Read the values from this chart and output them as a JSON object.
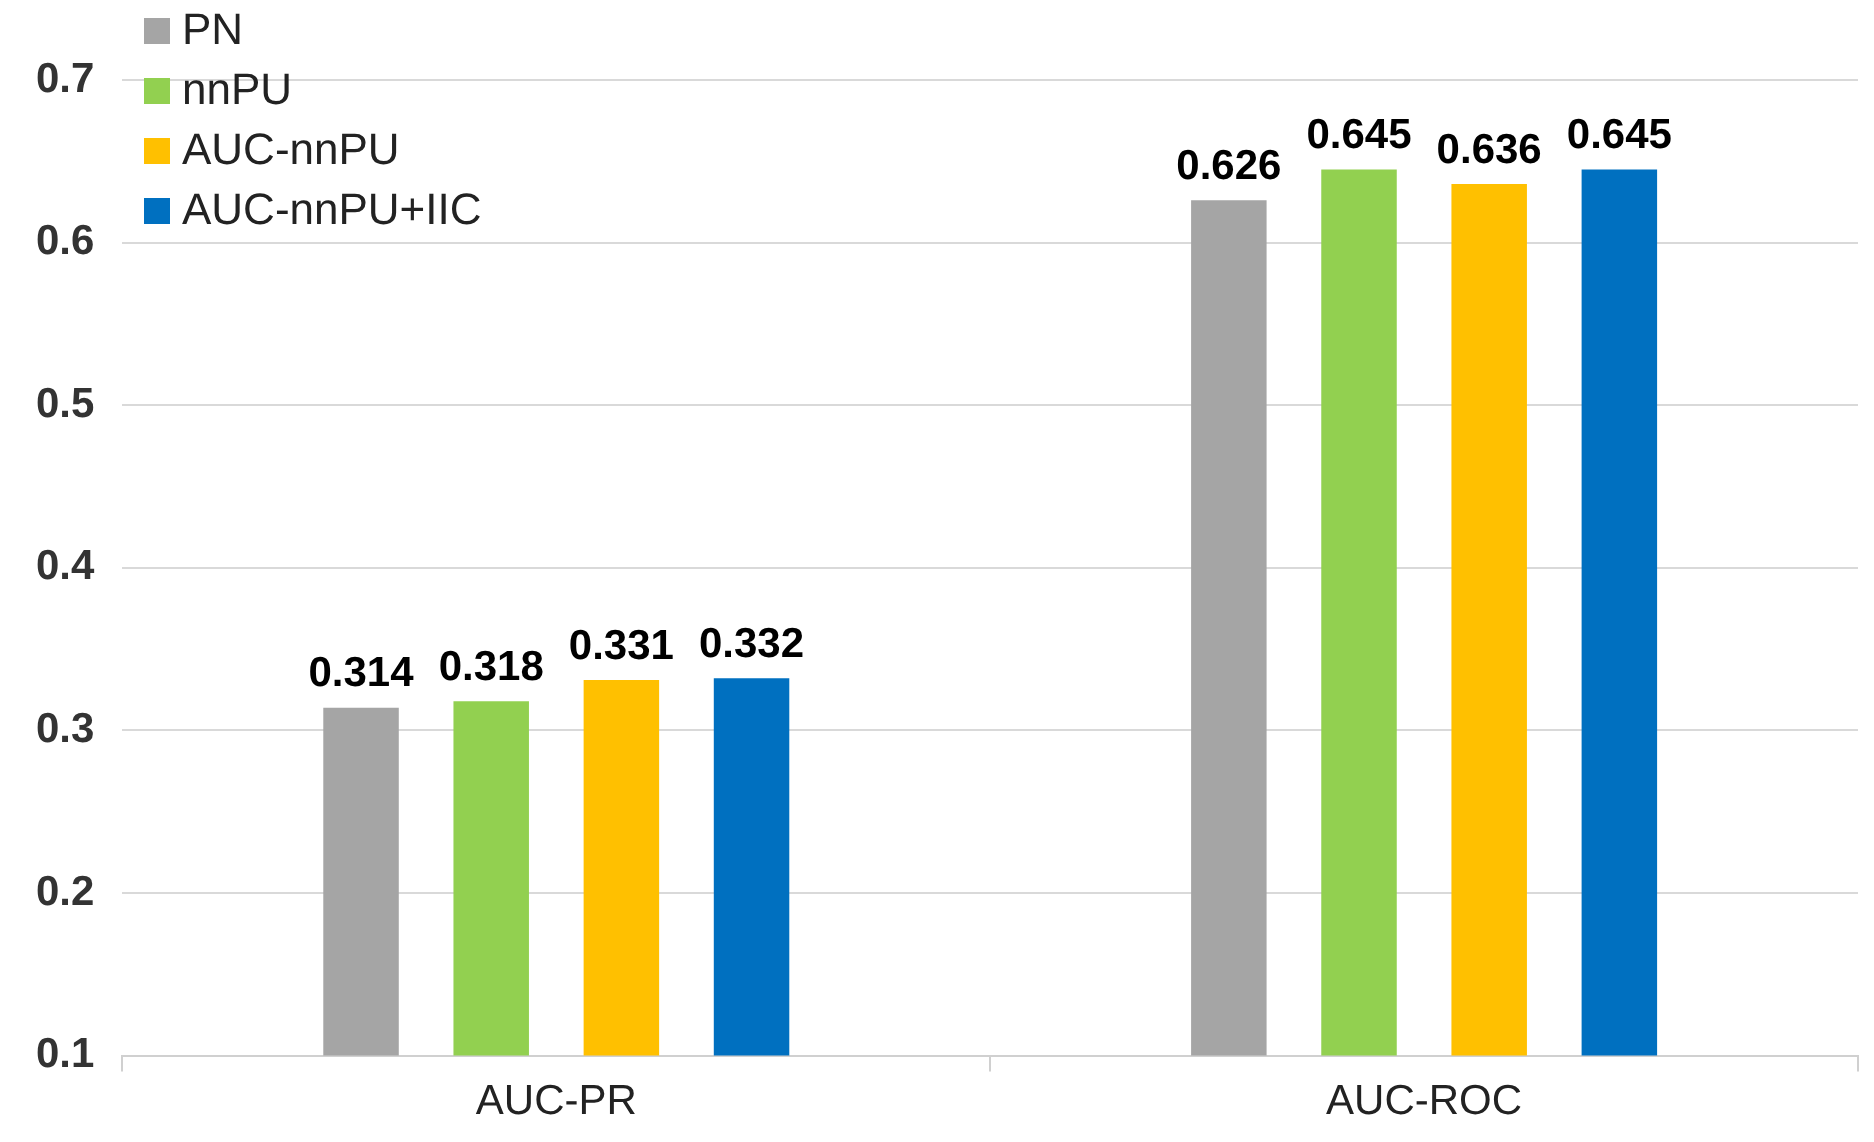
{
  "chart_data": {
    "type": "bar",
    "categories": [
      "AUC-PR",
      "AUC-ROC"
    ],
    "series": [
      {
        "name": "PN",
        "color": "#a5a5a5",
        "values": [
          0.314,
          0.626
        ]
      },
      {
        "name": "nnPU",
        "color": "#92d050",
        "values": [
          0.318,
          0.645
        ]
      },
      {
        "name": "AUC-nnPU",
        "color": "#ffc000",
        "values": [
          0.331,
          0.636
        ]
      },
      {
        "name": "AUC-nnPU+IIC",
        "color": "#0070c0",
        "values": [
          0.332,
          0.645
        ]
      }
    ],
    "ylim": [
      0.1,
      0.7
    ],
    "yticks": [
      0.1,
      0.2,
      0.3,
      0.4,
      0.5,
      0.6,
      0.7
    ],
    "grid": "y",
    "legend": "top left",
    "data_labels": true
  }
}
